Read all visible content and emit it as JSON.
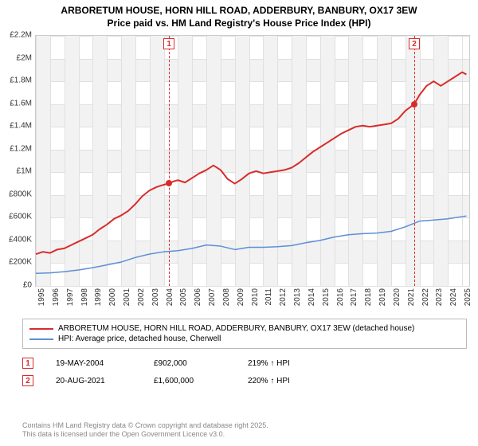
{
  "title_line1": "ARBORETUM HOUSE, HORN HILL ROAD, ADDERBURY, BANBURY, OX17 3EW",
  "title_line2": "Price paid vs. HM Land Registry's House Price Index (HPI)",
  "chart": {
    "type": "line",
    "background_color": "#ffffff",
    "band_color": "#f2f2f2",
    "grid_color": "#e0e0e0",
    "border_color": "#cccccc",
    "x_years": [
      1995,
      1996,
      1997,
      1998,
      1999,
      2000,
      2001,
      2002,
      2003,
      2004,
      2005,
      2006,
      2007,
      2008,
      2009,
      2010,
      2011,
      2012,
      2013,
      2014,
      2015,
      2016,
      2017,
      2018,
      2019,
      2020,
      2021,
      2022,
      2023,
      2024,
      2025
    ],
    "x_min": 1995,
    "x_max": 2025.5,
    "ylim": [
      0,
      2200000
    ],
    "yticks": [
      0,
      200000,
      400000,
      600000,
      800000,
      1000000,
      1200000,
      1400000,
      1600000,
      1800000,
      2000000,
      2200000
    ],
    "ytick_labels": [
      "£0",
      "£200K",
      "£400K",
      "£600K",
      "£800K",
      "£1M",
      "£1.2M",
      "£1.4M",
      "£1.6M",
      "£1.8M",
      "£2M",
      "£2.2M"
    ],
    "tick_fontsize": 10,
    "series": [
      {
        "name": "property",
        "label": "ARBORETUM HOUSE, HORN HILL ROAD, ADDERBURY, BANBURY, OX17 3EW (detached house)",
        "color": "#d92b2b",
        "line_width": 2,
        "points": [
          [
            1995.0,
            280000
          ],
          [
            1995.5,
            300000
          ],
          [
            1996.0,
            290000
          ],
          [
            1996.5,
            320000
          ],
          [
            1997.0,
            330000
          ],
          [
            1997.5,
            360000
          ],
          [
            1998.0,
            390000
          ],
          [
            1998.5,
            420000
          ],
          [
            1999.0,
            450000
          ],
          [
            1999.5,
            500000
          ],
          [
            2000.0,
            540000
          ],
          [
            2000.5,
            590000
          ],
          [
            2001.0,
            620000
          ],
          [
            2001.5,
            660000
          ],
          [
            2002.0,
            720000
          ],
          [
            2002.5,
            790000
          ],
          [
            2003.0,
            840000
          ],
          [
            2003.5,
            870000
          ],
          [
            2004.0,
            890000
          ],
          [
            2004.37,
            902000
          ],
          [
            2004.7,
            920000
          ],
          [
            2005.0,
            930000
          ],
          [
            2005.5,
            910000
          ],
          [
            2006.0,
            950000
          ],
          [
            2006.5,
            990000
          ],
          [
            2007.0,
            1020000
          ],
          [
            2007.5,
            1060000
          ],
          [
            2008.0,
            1020000
          ],
          [
            2008.5,
            940000
          ],
          [
            2009.0,
            900000
          ],
          [
            2009.5,
            940000
          ],
          [
            2010.0,
            990000
          ],
          [
            2010.5,
            1010000
          ],
          [
            2011.0,
            990000
          ],
          [
            2011.5,
            1000000
          ],
          [
            2012.0,
            1010000
          ],
          [
            2012.5,
            1020000
          ],
          [
            2013.0,
            1040000
          ],
          [
            2013.5,
            1080000
          ],
          [
            2014.0,
            1130000
          ],
          [
            2014.5,
            1180000
          ],
          [
            2015.0,
            1220000
          ],
          [
            2015.5,
            1260000
          ],
          [
            2016.0,
            1300000
          ],
          [
            2016.5,
            1340000
          ],
          [
            2017.0,
            1370000
          ],
          [
            2017.5,
            1400000
          ],
          [
            2018.0,
            1410000
          ],
          [
            2018.5,
            1400000
          ],
          [
            2019.0,
            1410000
          ],
          [
            2019.5,
            1420000
          ],
          [
            2020.0,
            1430000
          ],
          [
            2020.5,
            1470000
          ],
          [
            2021.0,
            1540000
          ],
          [
            2021.63,
            1600000
          ],
          [
            2022.0,
            1680000
          ],
          [
            2022.5,
            1760000
          ],
          [
            2023.0,
            1800000
          ],
          [
            2023.5,
            1760000
          ],
          [
            2024.0,
            1800000
          ],
          [
            2024.5,
            1840000
          ],
          [
            2025.0,
            1880000
          ],
          [
            2025.3,
            1860000
          ]
        ]
      },
      {
        "name": "hpi",
        "label": "HPI: Average price, detached house, Cherwell",
        "color": "#5b8fd6",
        "line_width": 1.5,
        "points": [
          [
            1995.0,
            110000
          ],
          [
            1996.0,
            115000
          ],
          [
            1997.0,
            125000
          ],
          [
            1998.0,
            140000
          ],
          [
            1999.0,
            160000
          ],
          [
            2000.0,
            185000
          ],
          [
            2001.0,
            210000
          ],
          [
            2002.0,
            250000
          ],
          [
            2003.0,
            280000
          ],
          [
            2004.0,
            300000
          ],
          [
            2005.0,
            310000
          ],
          [
            2006.0,
            330000
          ],
          [
            2007.0,
            360000
          ],
          [
            2008.0,
            350000
          ],
          [
            2009.0,
            320000
          ],
          [
            2010.0,
            340000
          ],
          [
            2011.0,
            340000
          ],
          [
            2012.0,
            345000
          ],
          [
            2013.0,
            355000
          ],
          [
            2014.0,
            380000
          ],
          [
            2015.0,
            400000
          ],
          [
            2016.0,
            430000
          ],
          [
            2017.0,
            450000
          ],
          [
            2018.0,
            460000
          ],
          [
            2019.0,
            465000
          ],
          [
            2020.0,
            480000
          ],
          [
            2021.0,
            520000
          ],
          [
            2022.0,
            570000
          ],
          [
            2023.0,
            580000
          ],
          [
            2024.0,
            590000
          ],
          [
            2025.0,
            610000
          ],
          [
            2025.3,
            615000
          ]
        ]
      }
    ],
    "markers": [
      {
        "n": "1",
        "x": 2004.37,
        "y": 902000
      },
      {
        "n": "2",
        "x": 2021.63,
        "y": 1600000
      }
    ]
  },
  "legend": {
    "border_color": "#bbbbbb"
  },
  "sales": [
    {
      "n": "1",
      "date": "19-MAY-2004",
      "price": "£902,000",
      "pct": "219% ↑ HPI"
    },
    {
      "n": "2",
      "date": "20-AUG-2021",
      "price": "£1,600,000",
      "pct": "220% ↑ HPI"
    }
  ],
  "footer_line1": "Contains HM Land Registry data © Crown copyright and database right 2025.",
  "footer_line2": "This data is licensed under the Open Government Licence v3.0."
}
